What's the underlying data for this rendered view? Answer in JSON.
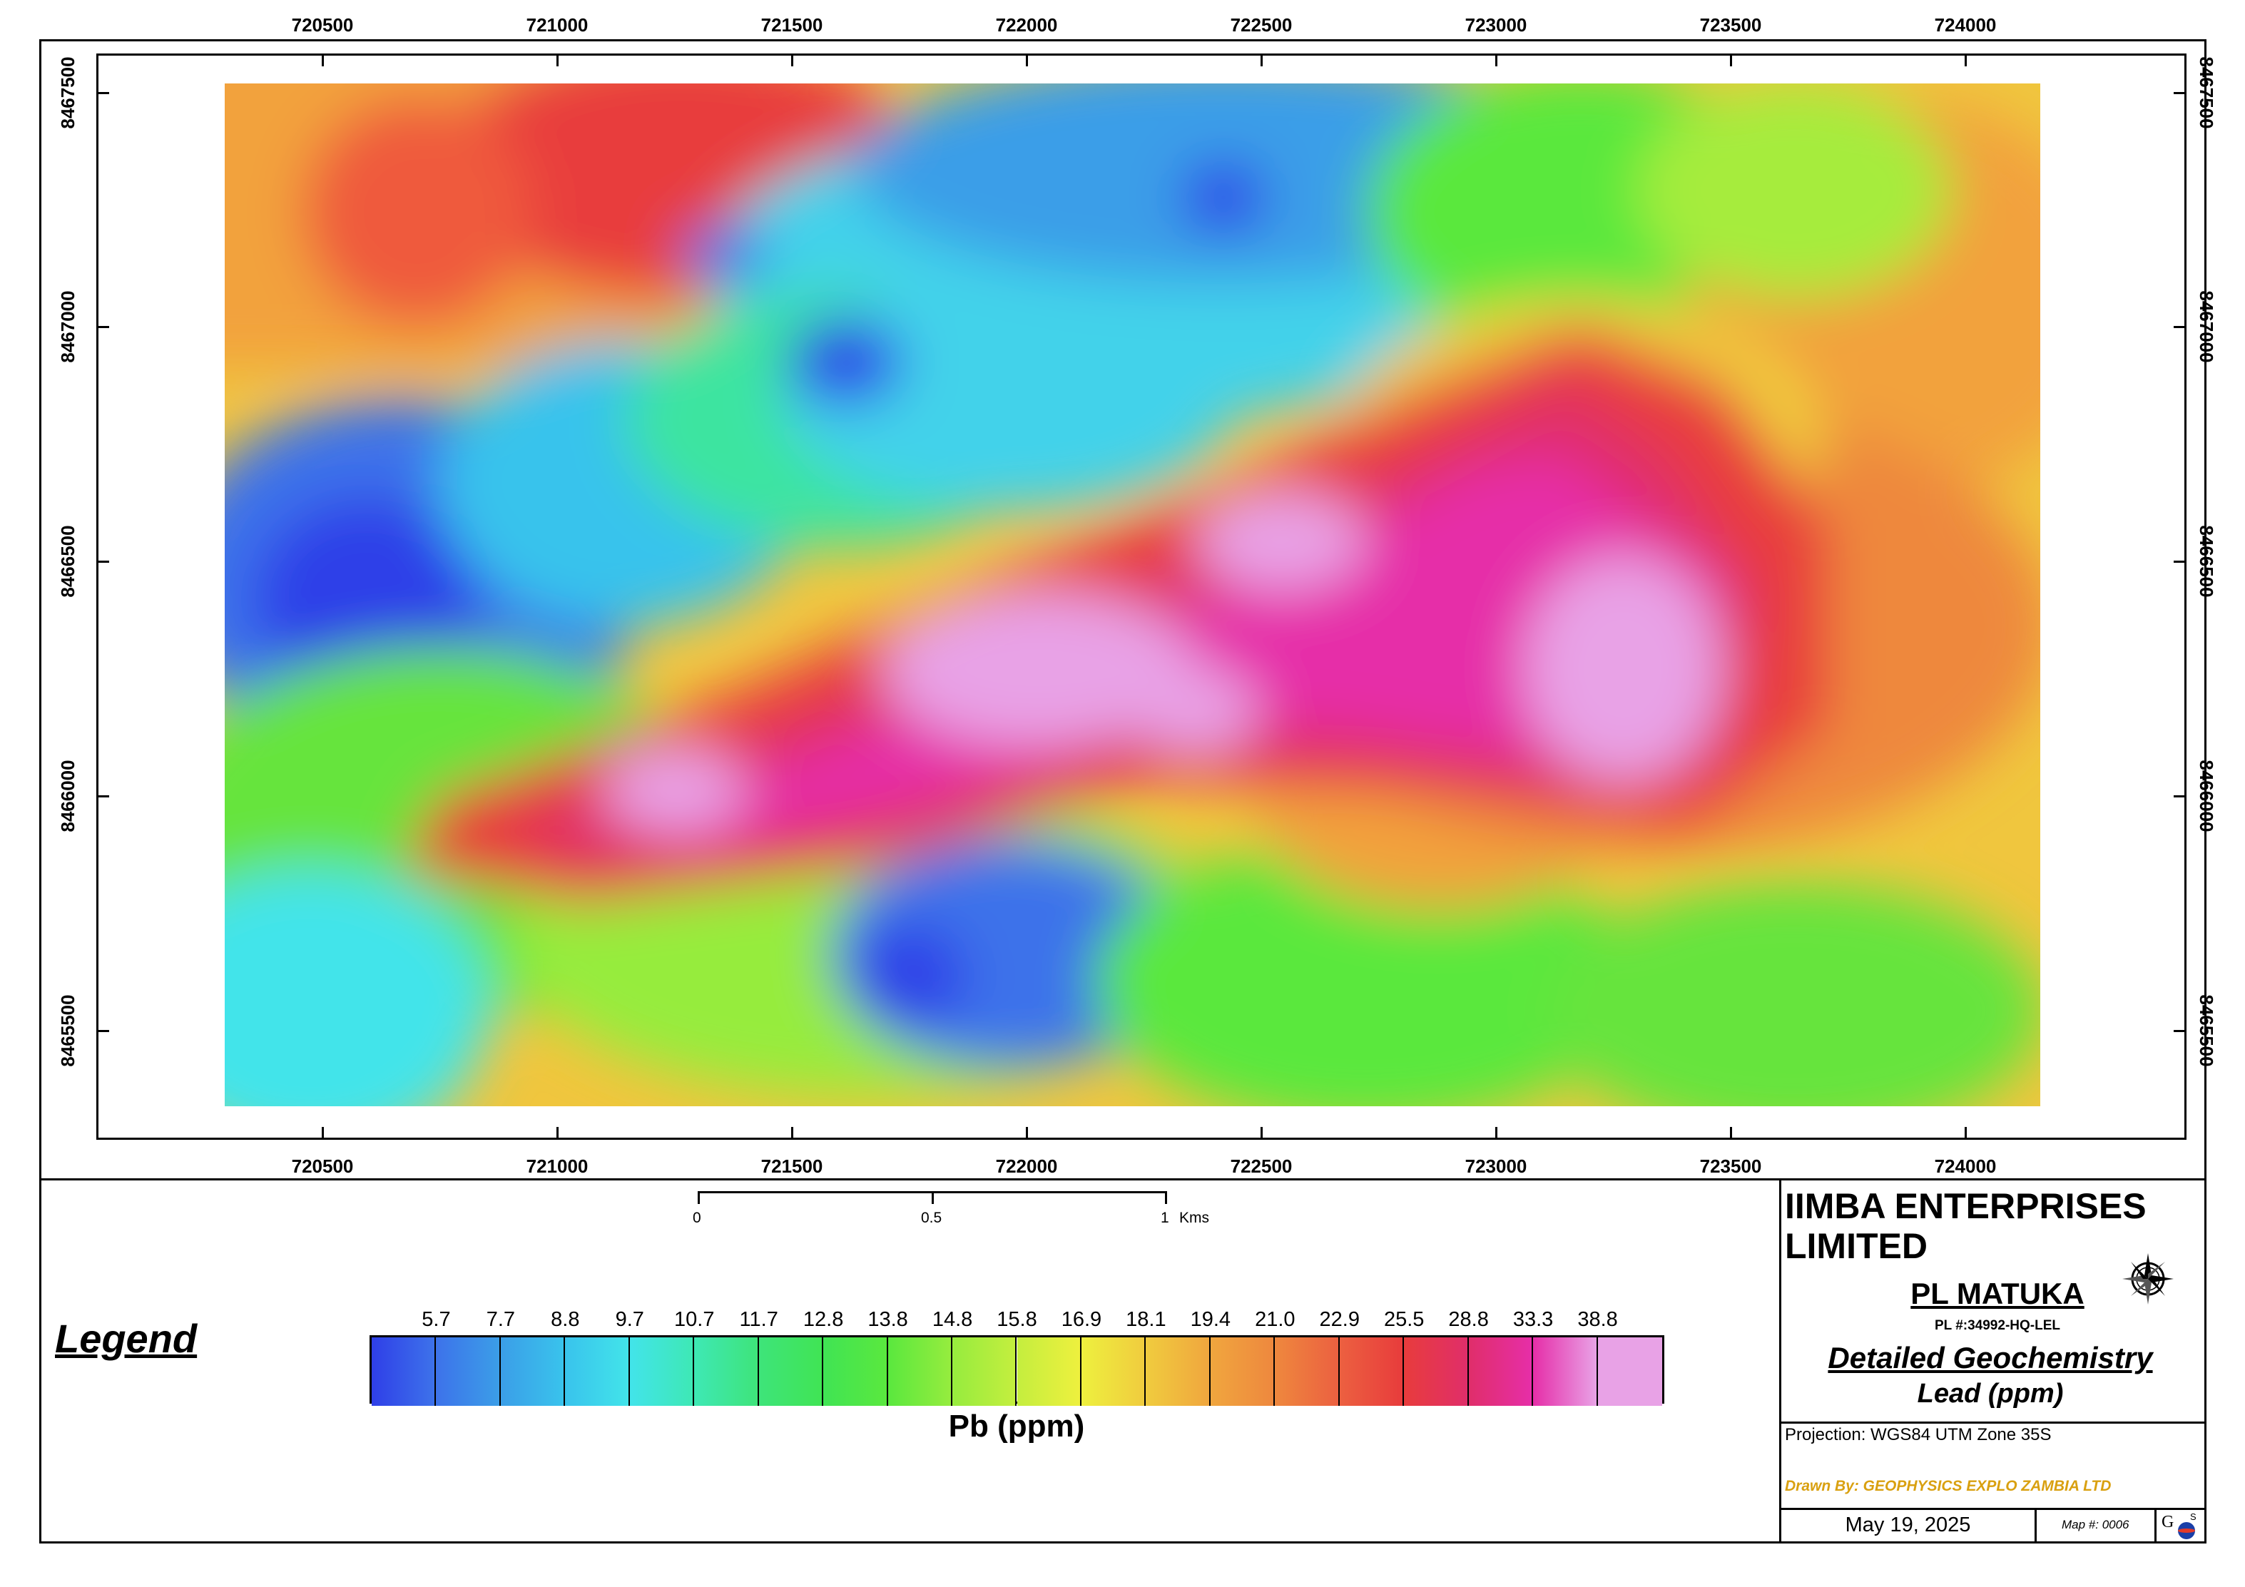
{
  "map": {
    "x_ticks": [
      "720500",
      "721000",
      "721500",
      "722000",
      "722500",
      "723000",
      "723500",
      "724000"
    ],
    "y_ticks": [
      "8467500",
      "8467000",
      "8466500",
      "8466000",
      "8465500"
    ]
  },
  "scale_bar": {
    "labels": [
      "0",
      "0.5",
      "1"
    ],
    "unit": "Kms"
  },
  "legend": {
    "title": "Legend",
    "bar_label": "Pb (ppm)",
    "values": [
      "5.7",
      "7.7",
      "8.8",
      "9.7",
      "10.7",
      "11.7",
      "12.8",
      "13.8",
      "14.8",
      "15.8",
      "16.9",
      "18.1",
      "19.4",
      "21.0",
      "22.9",
      "25.5",
      "28.8",
      "33.3",
      "38.8"
    ],
    "colors": [
      "#2f3fe8",
      "#3d72ea",
      "#3b9ee8",
      "#39c3ec",
      "#42e4ea",
      "#3ee8b5",
      "#3ee47a",
      "#40e454",
      "#5ae83e",
      "#96ec3e",
      "#c4ee3e",
      "#eef03e",
      "#f0cc3e",
      "#f0a63e",
      "#ee883e",
      "#ec6040",
      "#e83c3c",
      "#e02e6a",
      "#e62ea8",
      "#e8a2e6"
    ]
  },
  "title_block": {
    "company": "IIMBA ENTERPRISES LIMITED",
    "permit": "PL MATUKA",
    "permit_number": "PL #:34992-HQ-LEL",
    "subject": "Detailed Geochemistry",
    "element": "Lead (ppm)",
    "projection": "Projection: WGS84 UTM Zone 35S",
    "drawn_by": "Drawn By: GEOPHYSICS EXPLO ZAMBIA LTD",
    "date": "May 19, 2025",
    "map_number": "Map #: 0006",
    "logo_text": "GES",
    "north_arrow_icon": "compass-rose-icon"
  }
}
